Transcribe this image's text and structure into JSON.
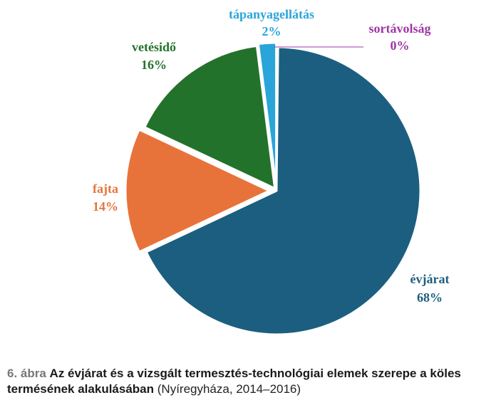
{
  "chart_data": {
    "type": "pie",
    "slices": [
      {
        "name": "évjárat",
        "value": 68,
        "label": "68%",
        "color": "#1b5e80"
      },
      {
        "name": "fajta",
        "value": 14,
        "label": "14%",
        "color": "#e8733a"
      },
      {
        "name": "vetésidő",
        "value": 16,
        "label": "16%",
        "color": "#23722b"
      },
      {
        "name": "tápanyagellátás",
        "value": 2,
        "label": "2%",
        "color": "#2aa5d9"
      },
      {
        "name": "sortávolság",
        "value": 0,
        "label": "0%",
        "color": "#a034a6"
      }
    ]
  },
  "caption": {
    "number": "6. ábra",
    "title": "Az évjárat és a vizsgált termesztés-technológiai elemek szerepe a köles termésének alakulásában",
    "source": "(Nyíregyháza, 2014–2016)"
  }
}
